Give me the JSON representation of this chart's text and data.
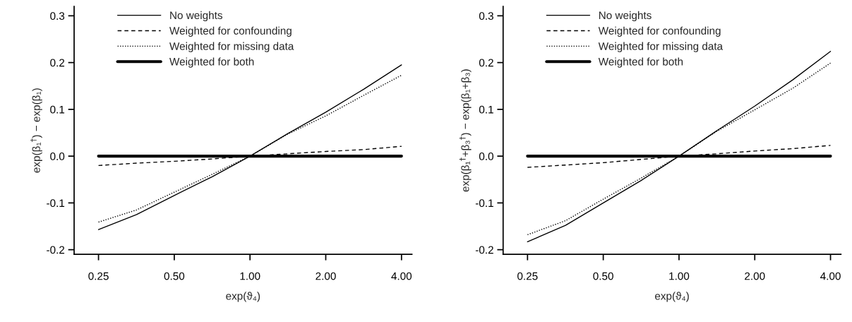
{
  "chart_data": [
    {
      "type": "line",
      "xlabel": "exp(ϑ₄)",
      "ylabel": "exp(β₁$^{†}$) − exp(β₁)",
      "log": "x",
      "legend": "top left",
      "grid": false,
      "xlim": [
        0.2,
        4.4
      ],
      "ylim": [
        -0.21,
        0.32
      ],
      "xticks": [
        {
          "value": 0.25,
          "label": "0.25"
        },
        {
          "value": 0.5,
          "label": "0.50"
        },
        {
          "value": 1,
          "label": "1.00"
        },
        {
          "value": 2,
          "label": "2.00"
        },
        {
          "value": 4,
          "label": "4.00"
        }
      ],
      "yticks": [
        {
          "value": -0.2,
          "label": "-0.2"
        },
        {
          "value": -0.1,
          "label": "-0.1"
        },
        {
          "value": 0,
          "label": "0.0"
        },
        0.1,
        0.2,
        0.3
      ],
      "x": [
        0.25,
        0.354,
        0.5,
        0.707,
        1,
        1.41,
        2,
        2.83,
        4
      ],
      "series": [
        {
          "name": "No weights",
          "color": "#000000",
          "line_style": "solid",
          "values": [
            -0.157,
            -0.125,
            -0.084,
            -0.044,
            0,
            0.048,
            0.094,
            0.143,
            0.195
          ]
        },
        {
          "name": "Weighted for confounding",
          "color": "#000000",
          "line_style": "dashed",
          "values": [
            -0.02,
            -0.015,
            -0.011,
            -0.006,
            0,
            0.005,
            0.01,
            0.014,
            0.021
          ]
        },
        {
          "name": "Weighted for missing data",
          "color": "#000000",
          "line_style": "dotted",
          "values": [
            -0.141,
            -0.115,
            -0.077,
            -0.039,
            0,
            0.047,
            0.086,
            0.13,
            0.173
          ]
        },
        {
          "name": "Weighted for both",
          "color": "#000000",
          "line_style": "solid",
          "values": [
            0,
            0,
            0,
            0,
            0,
            0,
            0,
            0,
            0
          ]
        }
      ]
    },
    {
      "type": "line",
      "xlabel": "exp(ϑ₄)",
      "ylabel": "exp(β₁$^{†}$+β₃$^{†}$) − exp(β₁+β₃)",
      "log": "x",
      "legend": "top left",
      "grid": false,
      "xlim": [
        0.2,
        4.4
      ],
      "ylim": [
        -0.21,
        0.32
      ],
      "xticks": [
        {
          "value": 0.25,
          "label": "0.25"
        },
        {
          "value": 0.5,
          "label": "0.50"
        },
        {
          "value": 1,
          "label": "1.00"
        },
        {
          "value": 2,
          "label": "2.00"
        },
        {
          "value": 4,
          "label": "4.00"
        }
      ],
      "yticks": [
        {
          "value": -0.2,
          "label": "-0.2"
        },
        {
          "value": -0.1,
          "label": "-0.1"
        },
        {
          "value": 0,
          "label": "0.0"
        },
        0.1,
        0.2,
        0.3
      ],
      "x": [
        0.25,
        0.354,
        0.5,
        0.707,
        1,
        1.41,
        2,
        2.83,
        4
      ],
      "series": [
        {
          "name": "No weights",
          "color": "#000000",
          "line_style": "solid",
          "values": [
            -0.183,
            -0.148,
            -0.1,
            -0.052,
            0,
            0.054,
            0.107,
            0.163,
            0.224
          ]
        },
        {
          "name": "Weighted for confounding",
          "color": "#000000",
          "line_style": "dashed",
          "values": [
            -0.024,
            -0.019,
            -0.014,
            -0.007,
            0,
            0.005,
            0.011,
            0.016,
            0.023
          ]
        },
        {
          "name": "Weighted for missing data",
          "color": "#000000",
          "line_style": "dotted",
          "values": [
            -0.168,
            -0.138,
            -0.092,
            -0.047,
            0,
            0.053,
            0.099,
            0.145,
            0.199
          ]
        },
        {
          "name": "Weighted for both",
          "color": "#000000",
          "line_style": "solid",
          "values": [
            0,
            0,
            0,
            0,
            0,
            0,
            0,
            0,
            0
          ]
        }
      ]
    }
  ]
}
